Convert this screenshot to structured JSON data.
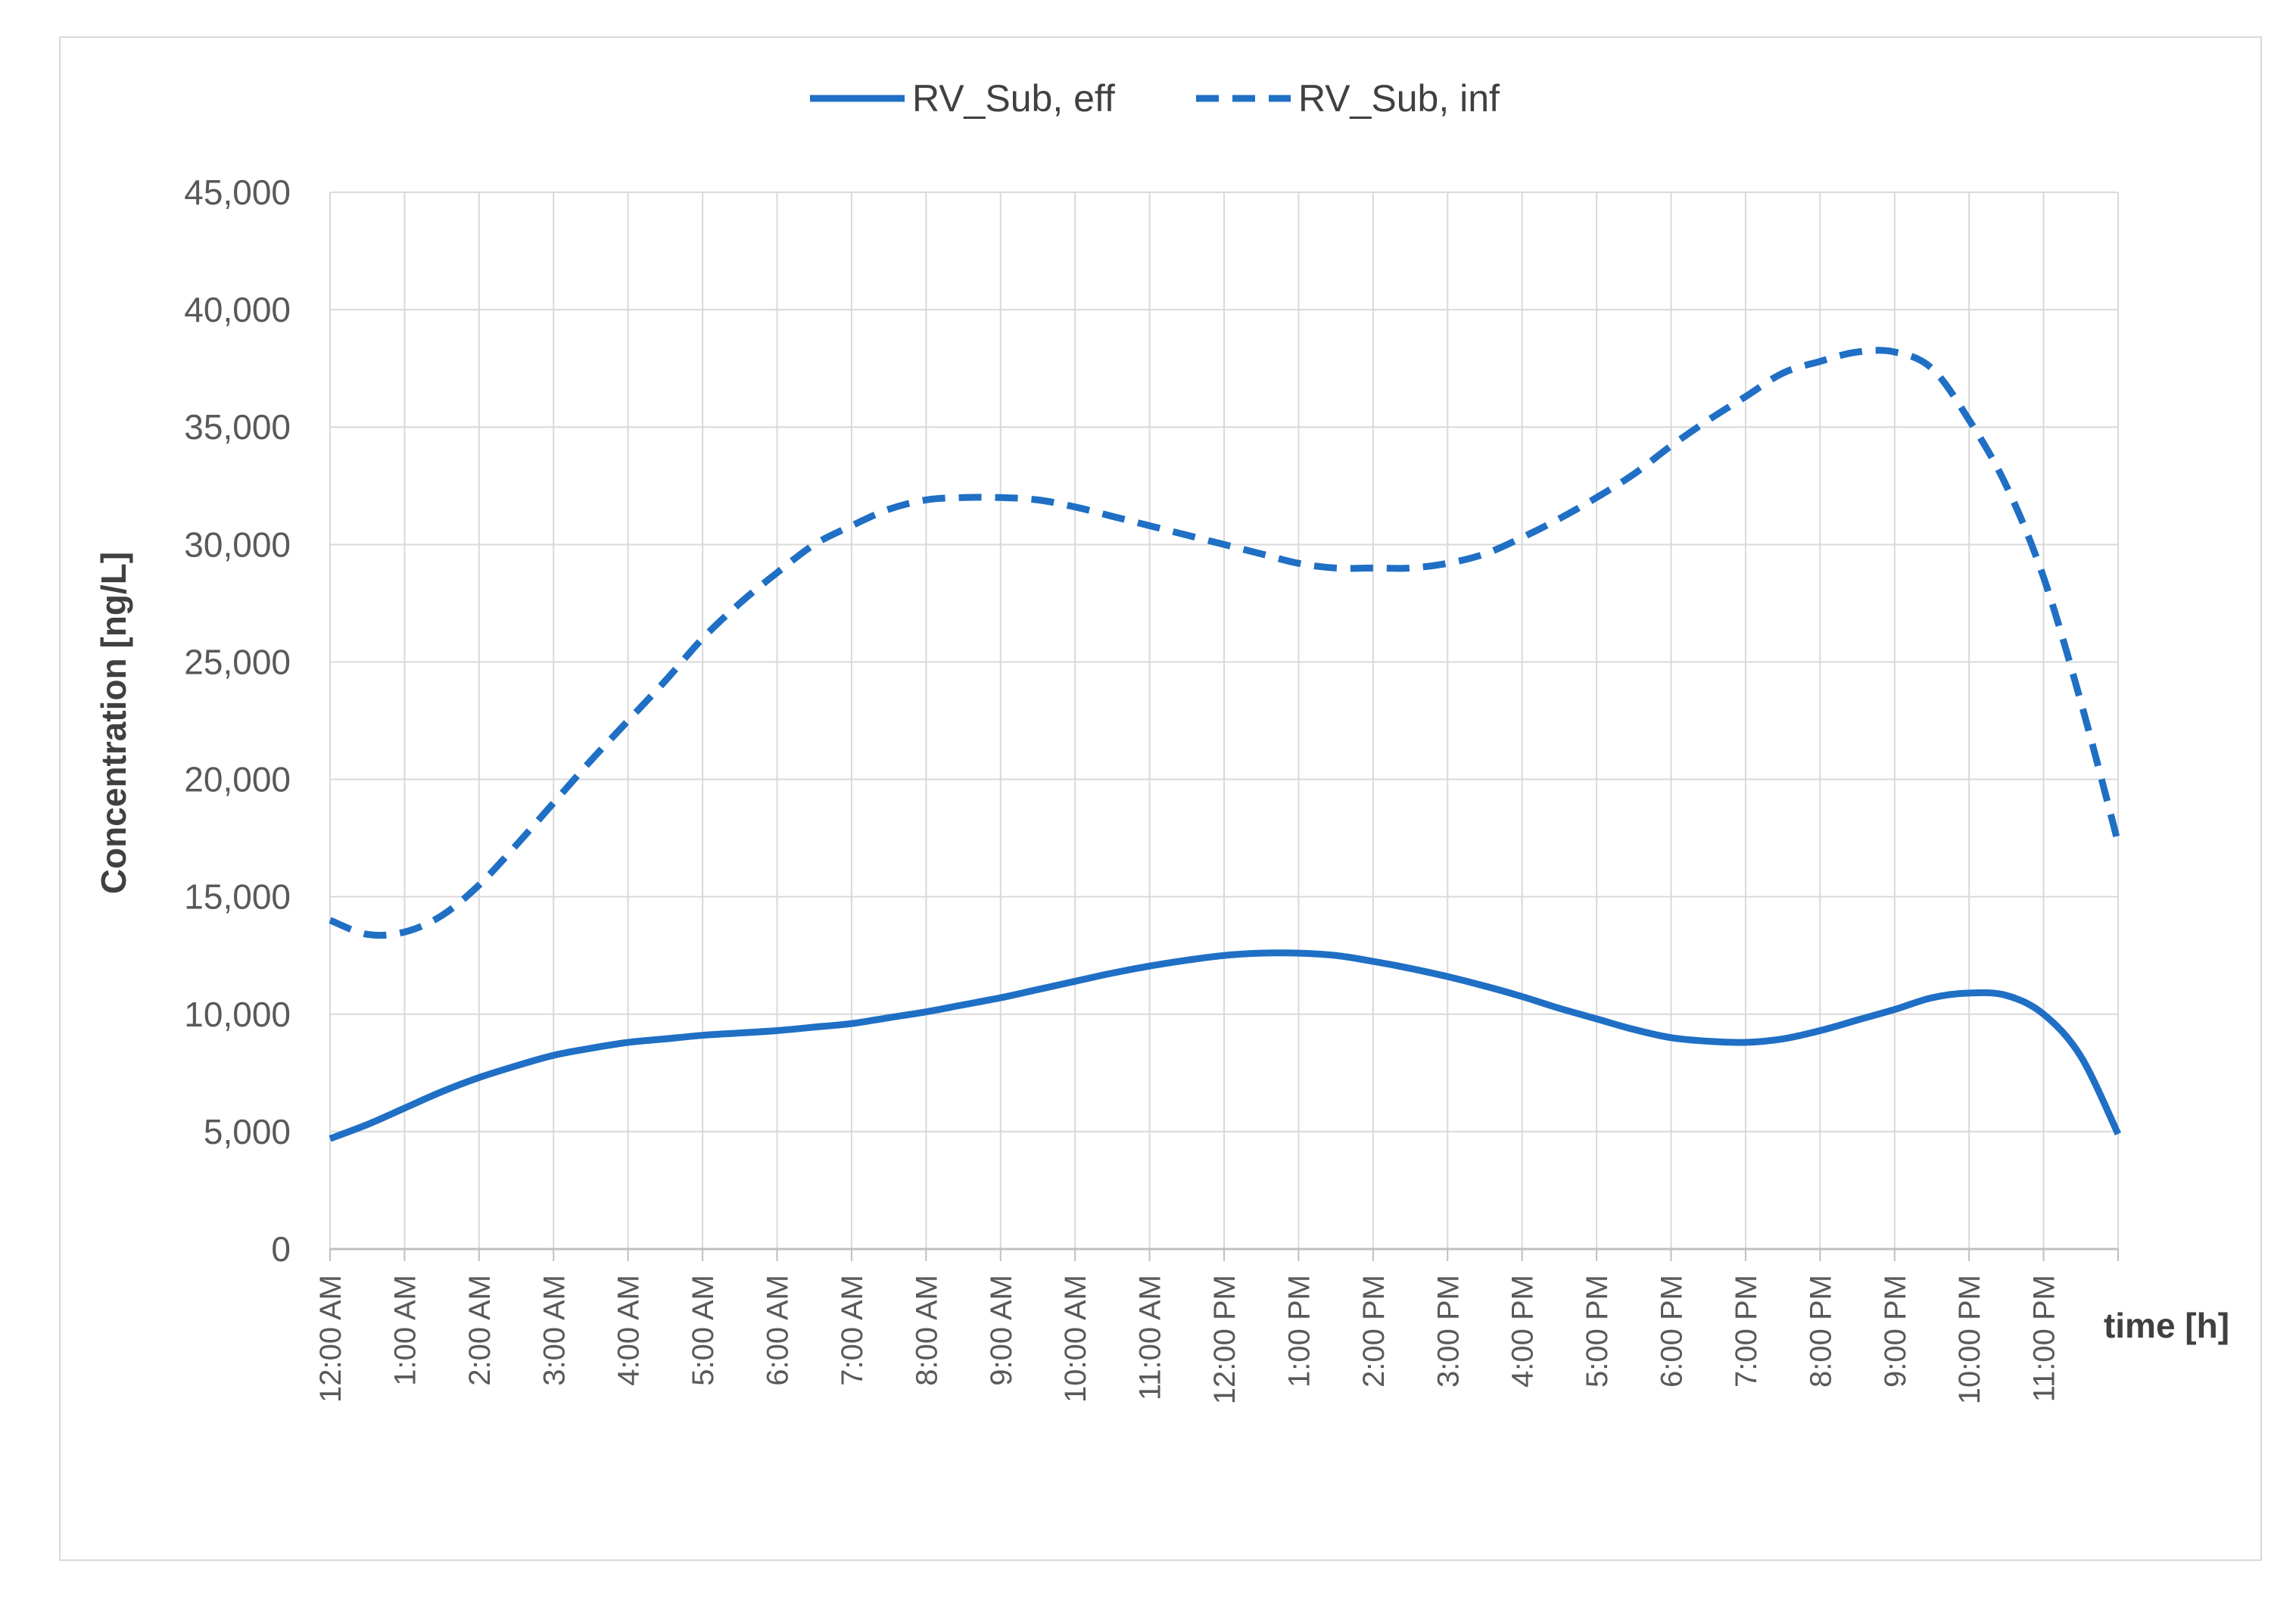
{
  "chart_data": {
    "type": "line",
    "title": "",
    "xlabel": "time [h]",
    "ylabel": "Concentration [ng/L]",
    "ylim": [
      0,
      45000
    ],
    "ytick_step": 5000,
    "yticks": [
      "0",
      "5,000",
      "10,000",
      "15,000",
      "20,000",
      "25,000",
      "30,000",
      "35,000",
      "40,000",
      "45,000"
    ],
    "xlim": [
      0,
      24
    ],
    "categories": [
      "12:00 AM",
      "1:00 AM",
      "2:00 AM",
      "3:00 AM",
      "4:00 AM",
      "5:00 AM",
      "6:00 AM",
      "7:00 AM",
      "8:00 AM",
      "9:00 AM",
      "10:00 AM",
      "11:00 AM",
      "12:00 PM",
      "1:00 PM",
      "2:00 PM",
      "3:00 PM",
      "4:00 PM",
      "5:00 PM",
      "6:00 PM",
      "7:00 PM",
      "8:00 PM",
      "9:00 PM",
      "10:00 PM",
      "11:00 PM"
    ],
    "grid": true,
    "legend_position": "top",
    "series": [
      {
        "name": "RV_Sub, eff",
        "style": "solid",
        "color": "#1f6fc5",
        "x": [
          0,
          0.5,
          1,
          1.5,
          2,
          2.5,
          3,
          3.5,
          4,
          4.5,
          5,
          5.5,
          6,
          6.5,
          7,
          7.5,
          8,
          8.5,
          9,
          9.5,
          10,
          10.5,
          11,
          11.5,
          12,
          12.5,
          13,
          13.5,
          14,
          14.5,
          15,
          15.5,
          16,
          16.5,
          17,
          17.5,
          18,
          18.5,
          19,
          19.5,
          20,
          20.5,
          21,
          21.5,
          22,
          22.5,
          23,
          23.5,
          24
        ],
        "y": [
          4700,
          5300,
          6000,
          6700,
          7300,
          7800,
          8250,
          8550,
          8800,
          8950,
          9100,
          9200,
          9300,
          9450,
          9600,
          9850,
          10100,
          10400,
          10700,
          11050,
          11400,
          11750,
          12050,
          12300,
          12500,
          12600,
          12600,
          12500,
          12250,
          11950,
          11600,
          11200,
          10750,
          10250,
          9800,
          9350,
          9000,
          8850,
          8800,
          8950,
          9300,
          9750,
          10200,
          10700,
          10900,
          10800,
          10000,
          8200,
          4900
        ]
      },
      {
        "name": "RV_Sub, inf",
        "style": "dashed",
        "color": "#1f6fc5",
        "x": [
          0,
          0.5,
          1,
          1.5,
          2,
          2.5,
          3,
          3.5,
          4,
          4.5,
          5,
          5.5,
          6,
          6.5,
          7,
          7.5,
          8,
          8.5,
          9,
          9.5,
          10,
          10.5,
          11,
          11.5,
          12,
          12.5,
          13,
          13.5,
          14,
          14.5,
          15,
          15.5,
          16,
          16.5,
          17,
          17.5,
          18,
          18.5,
          19,
          19.5,
          20,
          20.5,
          21,
          21.5,
          22,
          22.5,
          23,
          23.5,
          24
        ],
        "y": [
          14000,
          13400,
          13500,
          14200,
          15500,
          17200,
          19000,
          20800,
          22500,
          24200,
          26000,
          27500,
          28800,
          30000,
          30800,
          31500,
          31900,
          32000,
          32000,
          31900,
          31600,
          31200,
          30800,
          30400,
          30000,
          29600,
          29200,
          29000,
          29000,
          29000,
          29200,
          29600,
          30300,
          31100,
          32000,
          33000,
          34200,
          35300,
          36300,
          37300,
          37800,
          38200,
          38200,
          37500,
          35300,
          32500,
          28600,
          23300,
          17300
        ]
      }
    ]
  }
}
